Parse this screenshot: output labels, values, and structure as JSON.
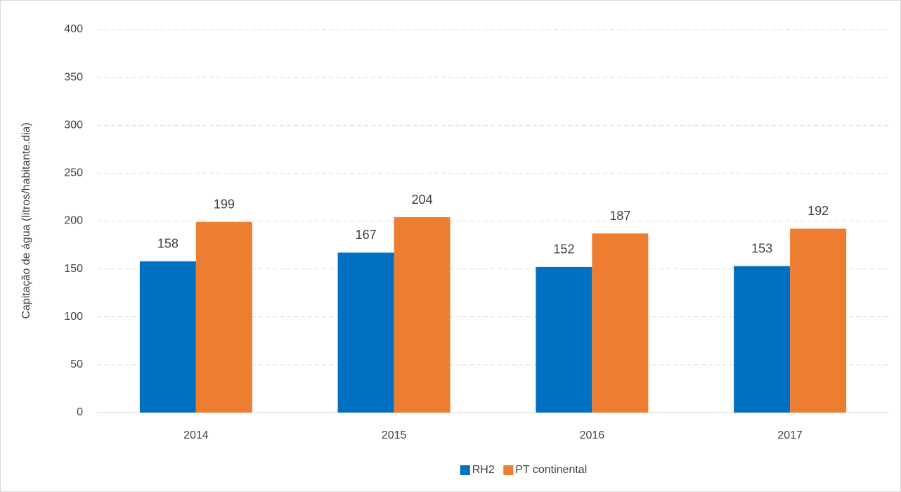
{
  "chart_data": {
    "type": "bar",
    "y_label": "Capitação de água (litros/habitante.dia)",
    "categories": [
      "2014",
      "2015",
      "2016",
      "2017"
    ],
    "series": [
      {
        "name": "RH2",
        "color": "#0070c0",
        "values": [
          158,
          167,
          152,
          153
        ]
      },
      {
        "name": "PT continental",
        "color": "#ed7d31",
        "values": [
          199,
          204,
          187,
          192
        ]
      }
    ],
    "ylim": [
      0,
      400
    ],
    "yticks": [
      0,
      50,
      100,
      150,
      200,
      250,
      300,
      350,
      400
    ],
    "grid": true,
    "legend": "bottom"
  }
}
